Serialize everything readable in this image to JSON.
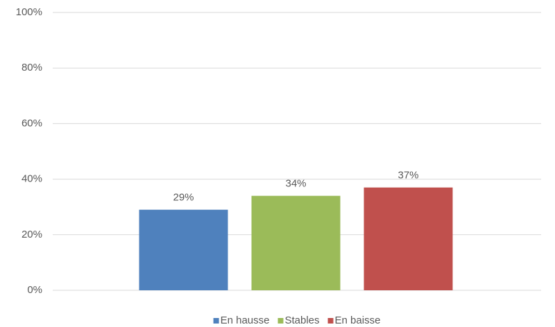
{
  "chart_data": {
    "type": "bar",
    "categories": [
      null
    ],
    "series": [
      {
        "name": "En hausse",
        "color": "#4f81bd",
        "values": [
          29
        ],
        "value_labels": [
          "29%"
        ]
      },
      {
        "name": "Stables",
        "color": "#9bbb59",
        "values": [
          34
        ],
        "value_labels": [
          "34%"
        ]
      },
      {
        "name": "En baisse",
        "color": "#c0504d",
        "values": [
          37
        ],
        "value_labels": [
          "37%"
        ]
      }
    ],
    "ylim": [
      0,
      100
    ],
    "yticks": [
      {
        "value": 0,
        "label": "0%"
      },
      {
        "value": 20,
        "label": "20%"
      },
      {
        "value": 40,
        "label": "40%"
      },
      {
        "value": 60,
        "label": "60%"
      },
      {
        "value": 80,
        "label": "80%"
      },
      {
        "value": 100,
        "label": "100%"
      }
    ],
    "grid": true,
    "legend": "bottom"
  }
}
